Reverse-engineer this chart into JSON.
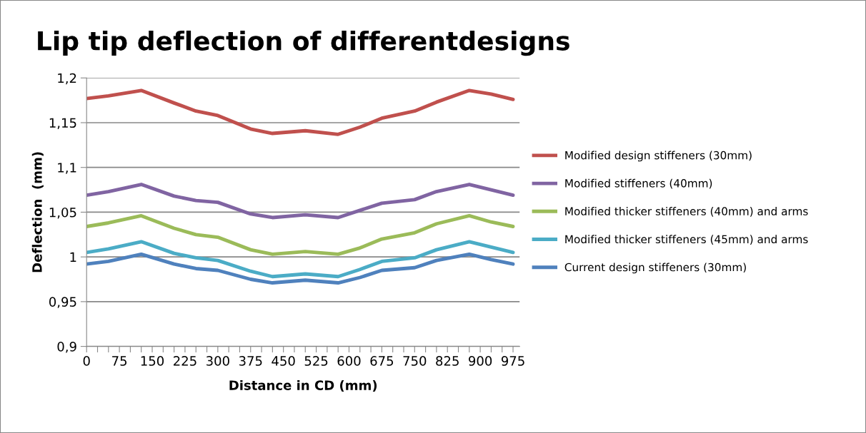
{
  "chart_data": {
    "type": "line",
    "title": "Lip tip deflection of differentdesigns",
    "xlabel": "Distance in CD (mm)",
    "ylabel": "Deflection  (mm)",
    "x": [
      0,
      50,
      125,
      200,
      250,
      300,
      375,
      425,
      500,
      575,
      625,
      675,
      750,
      800,
      875,
      925,
      975
    ],
    "series": [
      {
        "name": "Modified design stiffeners (30mm)",
        "color": "#c0504d",
        "values": [
          1.177,
          1.18,
          1.186,
          1.172,
          1.163,
          1.158,
          1.143,
          1.138,
          1.141,
          1.137,
          1.145,
          1.155,
          1.163,
          1.173,
          1.186,
          1.182,
          1.176
        ]
      },
      {
        "name": "Modified stiffeners (40mm)",
        "color": "#8064a2",
        "values": [
          1.069,
          1.073,
          1.081,
          1.068,
          1.063,
          1.061,
          1.048,
          1.044,
          1.047,
          1.044,
          1.052,
          1.06,
          1.064,
          1.073,
          1.081,
          1.075,
          1.069
        ]
      },
      {
        "name": "Modified thicker stiffeners (40mm) and arms",
        "color": "#9bbb59",
        "values": [
          1.034,
          1.038,
          1.046,
          1.032,
          1.025,
          1.022,
          1.008,
          1.003,
          1.006,
          1.003,
          1.01,
          1.02,
          1.027,
          1.037,
          1.046,
          1.039,
          1.034
        ]
      },
      {
        "name": "Modified thicker stiffeners (45mm) and arms",
        "color": "#4bacc6",
        "values": [
          1.005,
          1.009,
          1.017,
          1.004,
          0.999,
          0.996,
          0.984,
          0.978,
          0.981,
          0.978,
          0.986,
          0.995,
          0.999,
          1.008,
          1.017,
          1.011,
          1.005
        ]
      },
      {
        "name": "Current design stiffeners (30mm)",
        "color": "#4f81bd",
        "values": [
          0.992,
          0.995,
          1.003,
          0.992,
          0.987,
          0.985,
          0.975,
          0.971,
          0.974,
          0.971,
          0.977,
          0.985,
          0.988,
          0.996,
          1.003,
          0.997,
          0.992
        ]
      }
    ],
    "xlim": [
      0,
      990
    ],
    "ylim": [
      0.9,
      1.2
    ],
    "xticks": [
      0,
      {
        "value": 25,
        "label": null
      },
      {
        "value": 50,
        "label": null
      },
      75,
      {
        "value": 100,
        "label": null
      },
      {
        "value": 125,
        "label": null
      },
      150,
      {
        "value": 175,
        "label": null
      },
      {
        "value": 200,
        "label": null
      },
      225,
      {
        "value": 250,
        "label": null
      },
      {
        "value": 275,
        "label": null
      },
      300,
      {
        "value": 325,
        "label": null
      },
      {
        "value": 350,
        "label": null
      },
      375,
      {
        "value": 400,
        "label": null
      },
      {
        "value": 425,
        "label": null
      },
      450,
      {
        "value": 475,
        "label": null
      },
      {
        "value": 500,
        "label": null
      },
      525,
      {
        "value": 550,
        "label": null
      },
      {
        "value": 575,
        "label": null
      },
      600,
      {
        "value": 625,
        "label": null
      },
      {
        "value": 650,
        "label": null
      },
      675,
      {
        "value": 700,
        "label": null
      },
      {
        "value": 725,
        "label": null
      },
      750,
      {
        "value": 775,
        "label": null
      },
      {
        "value": 800,
        "label": null
      },
      825,
      {
        "value": 850,
        "label": null
      },
      {
        "value": 875,
        "label": null
      },
      900,
      {
        "value": 925,
        "label": null
      },
      {
        "value": 950,
        "label": null
      },
      975
    ],
    "yticks": [
      {
        "value": 0.9,
        "label": "0,9"
      },
      {
        "value": 0.95,
        "label": "0,95"
      },
      {
        "value": 1.0,
        "label": "1"
      },
      {
        "value": 1.05,
        "label": "1,05"
      },
      {
        "value": 1.1,
        "label": "1,1"
      },
      {
        "value": 1.15,
        "label": "1,15"
      },
      {
        "value": 1.2,
        "label": "1,2"
      }
    ],
    "grid": "y",
    "legend": "right",
    "marker": "none",
    "line_style": "solid"
  }
}
